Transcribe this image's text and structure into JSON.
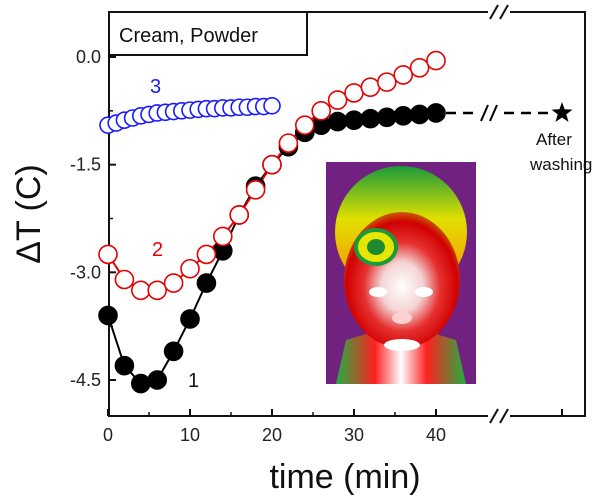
{
  "chart_data": {
    "type": "scatter",
    "title": "Cream, Powder",
    "xlabel": "time (min)",
    "ylabel": "ΔT (C)",
    "xlim": [
      -2,
      58
    ],
    "ylim": [
      -5.1,
      0.35
    ],
    "x_ticks": [
      0,
      10,
      20,
      30,
      40
    ],
    "y_ticks": [
      0.0,
      -1.5,
      -3.0,
      -4.5
    ],
    "y_tick_labels": [
      "0.0",
      "-1.5",
      "-3.0",
      "-4.5"
    ],
    "axis_break": "between 40 and the final point",
    "series": [
      {
        "name": "1",
        "color": "#000000",
        "marker": "filled-circle",
        "connect": "line",
        "x": [
          0,
          2,
          4,
          6,
          8,
          10,
          12,
          14,
          16,
          18,
          20,
          22,
          24,
          26,
          28,
          30,
          32,
          34,
          36,
          38,
          40
        ],
        "y": [
          -3.6,
          -4.3,
          -4.55,
          -4.5,
          -4.1,
          -3.65,
          -3.15,
          -2.7,
          -2.2,
          -1.8,
          -1.5,
          -1.25,
          -1.05,
          -0.95,
          -0.9,
          -0.88,
          -0.86,
          -0.84,
          -0.82,
          -0.8,
          -0.78
        ]
      },
      {
        "name": "2",
        "color": "#e60000",
        "marker": "open-circle",
        "connect": "line",
        "x": [
          0,
          2,
          4,
          6,
          8,
          10,
          12,
          14,
          16,
          18,
          20,
          22,
          24,
          26,
          28,
          30,
          32,
          34,
          36,
          38,
          40
        ],
        "y": [
          -2.75,
          -3.1,
          -3.25,
          -3.25,
          -3.15,
          -2.95,
          -2.75,
          -2.5,
          -2.2,
          -1.85,
          -1.5,
          -1.2,
          -0.95,
          -0.75,
          -0.6,
          -0.5,
          -0.42,
          -0.35,
          -0.25,
          -0.15,
          -0.05
        ]
      },
      {
        "name": "3",
        "color": "#1a1aff",
        "marker": "open-circle",
        "connect": "none",
        "x": [
          0,
          1,
          2,
          3,
          4,
          5,
          6,
          7,
          8,
          9,
          10,
          11,
          12,
          13,
          14,
          15,
          16,
          17,
          18,
          19,
          20
        ],
        "y": [
          -0.95,
          -0.92,
          -0.88,
          -0.85,
          -0.82,
          -0.8,
          -0.78,
          -0.77,
          -0.76,
          -0.75,
          -0.74,
          -0.73,
          -0.72,
          -0.72,
          -0.71,
          -0.71,
          -0.7,
          -0.7,
          -0.69,
          -0.69,
          -0.68
        ]
      }
    ],
    "after_washing": {
      "label_line1": "After",
      "label_line2": "washing",
      "y": -0.78,
      "marker": "star",
      "color": "#000000"
    },
    "inset": {
      "description": "thermal image of a face"
    }
  }
}
